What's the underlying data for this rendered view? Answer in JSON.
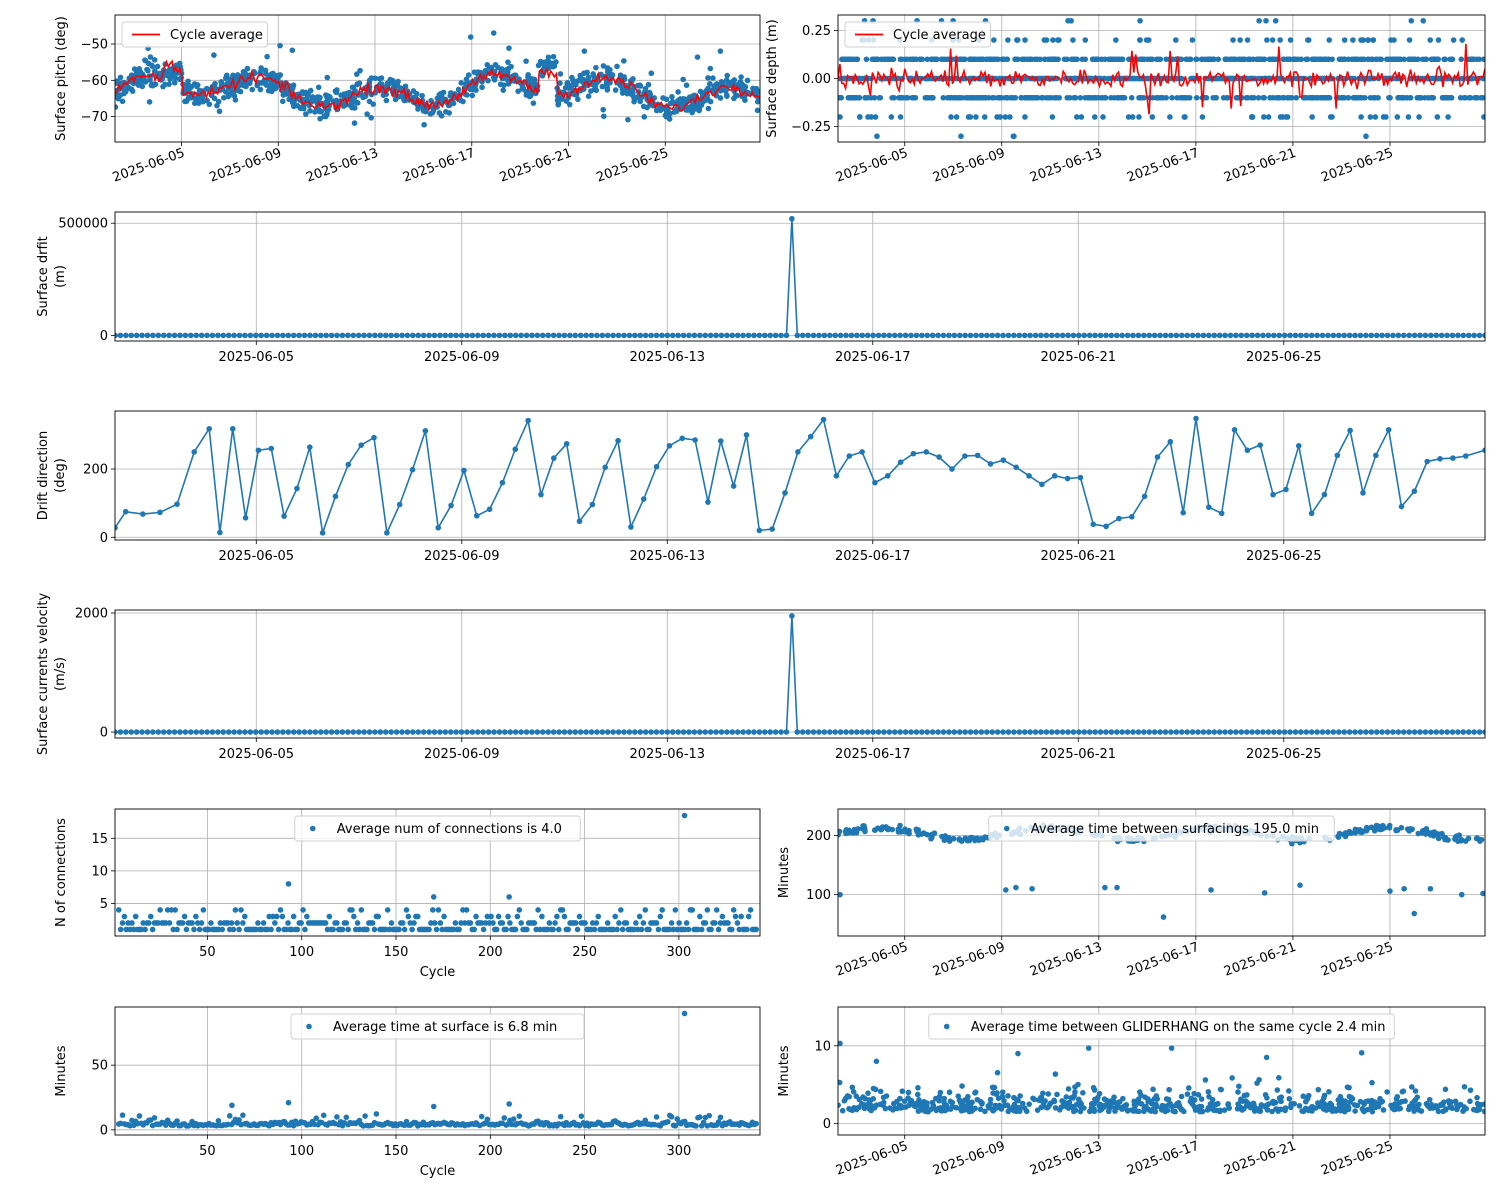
{
  "figure": {
    "background": "#ffffff"
  },
  "colors": {
    "points": "#1f77b4",
    "average": "#ff0000",
    "grid": "#b0b0b0"
  },
  "chart_data": [
    {
      "id": "pitch",
      "type": "scatter",
      "ylabel": "Surface pitch (deg)",
      "x_axis": "date",
      "xlim": [
        "2025-06-02T06:00",
        "2025-06-28T22:00"
      ],
      "ylim": [
        -77,
        -42
      ],
      "xticks": [
        "2025-06-05",
        "2025-06-09",
        "2025-06-13",
        "2025-06-17",
        "2025-06-21",
        "2025-06-25"
      ],
      "yticks": [
        -70,
        -60,
        -50
      ],
      "grid": true,
      "rotate_xticks": true,
      "legend": {
        "placement": "upper left",
        "entries": [
          "Cycle average"
        ]
      },
      "generated": {
        "kind": "pitch",
        "count": 1100,
        "start": "2025-06-02T06:00",
        "end": "2025-06-28T22:00"
      },
      "average_line": {
        "name": "Cycle average",
        "kind": "pitch",
        "count": 340,
        "start": "2025-06-02T06:00",
        "end": "2025-06-28T22:00"
      }
    },
    {
      "id": "depth",
      "type": "scatter",
      "ylabel": "Surface depth (m)",
      "x_axis": "date",
      "xlim": [
        "2025-06-02T06:00",
        "2025-06-28T22:00"
      ],
      "ylim": [
        -0.33,
        0.33
      ],
      "xticks": [
        "2025-06-05",
        "2025-06-09",
        "2025-06-13",
        "2025-06-17",
        "2025-06-21",
        "2025-06-25"
      ],
      "yticks": [
        -0.25,
        0.0,
        0.25
      ],
      "ytick_labels": [
        "−0.25",
        "0.00",
        "0.25"
      ],
      "grid": true,
      "rotate_xticks": true,
      "legend": {
        "placement": "upper left",
        "entries": [
          "Cycle average"
        ]
      },
      "generated": {
        "kind": "depth",
        "count": 1300,
        "start": "2025-06-02T06:00",
        "end": "2025-06-28T22:00"
      },
      "average_line": {
        "name": "Cycle average",
        "kind": "depthavg",
        "count": 340,
        "start": "2025-06-02T06:00",
        "end": "2025-06-28T22:00"
      }
    },
    {
      "id": "drift",
      "type": "line",
      "ylabel": [
        "Surface drfit",
        "(m)"
      ],
      "x_axis": "date",
      "xlim": [
        "2025-06-02T06:00",
        "2025-06-28T22:00"
      ],
      "ylim": [
        -25000,
        550000
      ],
      "xticks": [
        "2025-06-05",
        "2025-06-09",
        "2025-06-13",
        "2025-06-17",
        "2025-06-21",
        "2025-06-25"
      ],
      "yticks": [
        0,
        500000
      ],
      "grid": true,
      "markers": true,
      "generated": {
        "kind": "zerospike",
        "count": 254,
        "start": "2025-06-02T06:00",
        "end": "2025-06-28T22:00",
        "spike_time": "2025-06-15T09:00",
        "spike_value": 520000
      }
    },
    {
      "id": "direction",
      "type": "line",
      "ylabel": [
        "Drift direction",
        "(deg)"
      ],
      "x_axis": "date",
      "xlim": [
        "2025-06-02T06:00",
        "2025-06-28T22:00"
      ],
      "ylim": [
        -8,
        370
      ],
      "xticks": [
        "2025-06-05",
        "2025-06-09",
        "2025-06-13",
        "2025-06-17",
        "2025-06-21",
        "2025-06-25"
      ],
      "yticks": [
        0,
        200
      ],
      "grid": true,
      "markers": true,
      "points": [
        [
          "2025-06-02T06:00",
          28
        ],
        [
          "2025-06-02T11:00",
          75
        ],
        [
          "2025-06-02T19:00",
          68
        ],
        [
          "2025-06-03T03:00",
          73
        ],
        [
          "2025-06-03T11:00",
          97
        ],
        [
          "2025-06-03T19:00",
          250
        ],
        [
          "2025-06-04T02:00",
          318
        ],
        [
          "2025-06-04T07:00",
          14
        ],
        [
          "2025-06-04T13:00",
          318
        ],
        [
          "2025-06-04T19:00",
          57
        ],
        [
          "2025-06-05T01:00",
          255
        ],
        [
          "2025-06-05T07:00",
          260
        ],
        [
          "2025-06-05T13:00",
          62
        ],
        [
          "2025-06-05T19:00",
          143
        ],
        [
          "2025-06-06T01:00",
          264
        ],
        [
          "2025-06-06T07:00",
          13
        ],
        [
          "2025-06-06T13:00",
          120
        ],
        [
          "2025-06-06T19:00",
          213
        ],
        [
          "2025-06-07T01:00",
          270
        ],
        [
          "2025-06-07T07:00",
          292
        ],
        [
          "2025-06-07T13:00",
          13
        ],
        [
          "2025-06-07T19:00",
          96
        ],
        [
          "2025-06-08T01:00",
          198
        ],
        [
          "2025-06-08T07:00",
          312
        ],
        [
          "2025-06-08T13:00",
          28
        ],
        [
          "2025-06-08T19:00",
          93
        ],
        [
          "2025-06-09T01:00",
          196
        ],
        [
          "2025-06-09T07:00",
          63
        ],
        [
          "2025-06-09T13:00",
          82
        ],
        [
          "2025-06-09T19:00",
          160
        ],
        [
          "2025-06-10T01:00",
          258
        ],
        [
          "2025-06-10T07:00",
          342
        ],
        [
          "2025-06-10T13:00",
          125
        ],
        [
          "2025-06-10T19:00",
          232
        ],
        [
          "2025-06-11T01:00",
          274
        ],
        [
          "2025-06-11T07:00",
          47
        ],
        [
          "2025-06-11T13:00",
          96
        ],
        [
          "2025-06-11T19:00",
          205
        ],
        [
          "2025-06-12T01:00",
          283
        ],
        [
          "2025-06-12T07:00",
          30
        ],
        [
          "2025-06-12T13:00",
          112
        ],
        [
          "2025-06-12T19:00",
          207
        ],
        [
          "2025-06-13T01:00",
          268
        ],
        [
          "2025-06-13T07:00",
          290
        ],
        [
          "2025-06-13T13:00",
          285
        ],
        [
          "2025-06-13T19:00",
          103
        ],
        [
          "2025-06-14T01:00",
          282
        ],
        [
          "2025-06-14T07:00",
          150
        ],
        [
          "2025-06-14T13:00",
          300
        ],
        [
          "2025-06-14T19:00",
          20
        ],
        [
          "2025-06-15T01:00",
          24
        ],
        [
          "2025-06-15T07:00",
          130
        ],
        [
          "2025-06-15T13:00",
          250
        ],
        [
          "2025-06-15T19:00",
          295
        ],
        [
          "2025-06-16T01:00",
          345
        ],
        [
          "2025-06-16T07:00",
          180
        ],
        [
          "2025-06-16T13:00",
          238
        ],
        [
          "2025-06-16T19:00",
          250
        ],
        [
          "2025-06-17T01:00",
          160
        ],
        [
          "2025-06-17T07:00",
          180
        ],
        [
          "2025-06-17T13:00",
          220
        ],
        [
          "2025-06-17T19:00",
          245
        ],
        [
          "2025-06-18T01:00",
          250
        ],
        [
          "2025-06-18T07:00",
          235
        ],
        [
          "2025-06-18T13:00",
          200
        ],
        [
          "2025-06-18T19:00",
          238
        ],
        [
          "2025-06-19T01:00",
          240
        ],
        [
          "2025-06-19T07:00",
          215
        ],
        [
          "2025-06-19T13:00",
          226
        ],
        [
          "2025-06-19T19:00",
          205
        ],
        [
          "2025-06-20T01:00",
          180
        ],
        [
          "2025-06-20T07:00",
          155
        ],
        [
          "2025-06-20T13:00",
          180
        ],
        [
          "2025-06-20T19:00",
          172
        ],
        [
          "2025-06-21T01:00",
          175
        ],
        [
          "2025-06-21T07:00",
          38
        ],
        [
          "2025-06-21T13:00",
          32
        ],
        [
          "2025-06-21T19:00",
          55
        ],
        [
          "2025-06-22T01:00",
          60
        ],
        [
          "2025-06-22T07:00",
          120
        ],
        [
          "2025-06-22T13:00",
          235
        ],
        [
          "2025-06-22T19:00",
          280
        ],
        [
          "2025-06-23T01:00",
          72
        ],
        [
          "2025-06-23T07:00",
          348
        ],
        [
          "2025-06-23T13:00",
          88
        ],
        [
          "2025-06-23T19:00",
          70
        ],
        [
          "2025-06-24T01:00",
          315
        ],
        [
          "2025-06-24T07:00",
          255
        ],
        [
          "2025-06-24T13:00",
          270
        ],
        [
          "2025-06-24T19:00",
          125
        ],
        [
          "2025-06-25T01:00",
          140
        ],
        [
          "2025-06-25T07:00",
          268
        ],
        [
          "2025-06-25T13:00",
          70
        ],
        [
          "2025-06-25T19:00",
          125
        ],
        [
          "2025-06-26T01:00",
          240
        ],
        [
          "2025-06-26T07:00",
          313
        ],
        [
          "2025-06-26T13:00",
          130
        ],
        [
          "2025-06-26T19:00",
          240
        ],
        [
          "2025-06-27T01:00",
          315
        ],
        [
          "2025-06-27T07:00",
          90
        ],
        [
          "2025-06-27T13:00",
          135
        ],
        [
          "2025-06-27T19:00",
          222
        ],
        [
          "2025-06-28T01:00",
          230
        ],
        [
          "2025-06-28T07:00",
          232
        ],
        [
          "2025-06-28T13:00",
          238
        ],
        [
          "2025-06-28T22:00",
          255
        ]
      ]
    },
    {
      "id": "velocity",
      "type": "line",
      "ylabel": [
        "Surface currents velocity",
        "(m/s)"
      ],
      "x_axis": "date",
      "xlim": [
        "2025-06-02T06:00",
        "2025-06-28T22:00"
      ],
      "ylim": [
        -100,
        2050
      ],
      "xticks": [
        "2025-06-05",
        "2025-06-09",
        "2025-06-13",
        "2025-06-17",
        "2025-06-21",
        "2025-06-25"
      ],
      "yticks": [
        0,
        2000
      ],
      "grid": true,
      "markers": true,
      "generated": {
        "kind": "zerospike",
        "count": 254,
        "start": "2025-06-02T06:00",
        "end": "2025-06-28T22:00",
        "spike_time": "2025-06-15T09:00",
        "spike_value": 1950
      }
    },
    {
      "id": "connections",
      "type": "scatter",
      "xlabel": "Cycle",
      "ylabel": "N of connections",
      "x_axis": "number",
      "xlim": [
        1,
        343
      ],
      "ylim": [
        0,
        19.5
      ],
      "xticks": [
        50,
        100,
        150,
        200,
        250,
        300
      ],
      "yticks": [
        5,
        10,
        15
      ],
      "grid": true,
      "legend": {
        "placement": "upper center",
        "entries": [
          "Average num of connections is 4.0"
        ]
      },
      "generated": {
        "kind": "connections",
        "count": 340,
        "start": 3,
        "end": 341
      },
      "outliers": [
        [
          303,
          18.5
        ],
        [
          93,
          8
        ],
        [
          170,
          6
        ],
        [
          210,
          6
        ]
      ]
    },
    {
      "id": "interval",
      "type": "scatter",
      "ylabel": "Minutes",
      "x_axis": "date",
      "xlim": [
        "2025-06-02T06:00",
        "2025-06-28T22:00"
      ],
      "ylim": [
        30,
        245
      ],
      "xticks": [
        "2025-06-05",
        "2025-06-09",
        "2025-06-13",
        "2025-06-17",
        "2025-06-21",
        "2025-06-25"
      ],
      "yticks": [
        100,
        200
      ],
      "grid": true,
      "rotate_xticks": true,
      "legend": {
        "placement": "upper center",
        "entries": [
          "Average time between surfacings 195.0 min"
        ]
      },
      "generated": {
        "kind": "interval",
        "count": 320,
        "start": "2025-06-02T06:00",
        "end": "2025-06-28T22:00"
      },
      "outliers": [
        [
          "2025-06-02T08:00",
          100
        ],
        [
          "2025-06-09T04:00",
          108
        ],
        [
          "2025-06-09T14:00",
          112
        ],
        [
          "2025-06-10T06:00",
          110
        ],
        [
          "2025-06-13T06:00",
          112
        ],
        [
          "2025-06-13T18:00",
          112
        ],
        [
          "2025-06-15T16:00",
          62
        ],
        [
          "2025-06-17T15:00",
          108
        ],
        [
          "2025-06-19T20:00",
          103
        ],
        [
          "2025-06-21T07:00",
          116
        ],
        [
          "2025-06-25T00:00",
          106
        ],
        [
          "2025-06-25T14:00",
          110
        ],
        [
          "2025-06-26T00:00",
          68
        ],
        [
          "2025-06-26T16:00",
          110
        ],
        [
          "2025-06-27T23:00",
          100
        ],
        [
          "2025-06-28T20:00",
          102
        ]
      ]
    },
    {
      "id": "surface_time",
      "type": "scatter",
      "xlabel": "Cycle",
      "ylabel": "Minutes",
      "x_axis": "number",
      "xlim": [
        1,
        343
      ],
      "ylim": [
        -4,
        95
      ],
      "xticks": [
        50,
        100,
        150,
        200,
        250,
        300
      ],
      "yticks": [
        0,
        50
      ],
      "grid": true,
      "legend": {
        "placement": "upper center",
        "entries": [
          "Average time at surface is 6.8 min"
        ]
      },
      "generated": {
        "kind": "surface",
        "count": 340,
        "start": 3,
        "end": 341
      },
      "outliers": [
        [
          303,
          90
        ],
        [
          93,
          21
        ],
        [
          63,
          19
        ],
        [
          170,
          18
        ],
        [
          210,
          20
        ]
      ]
    },
    {
      "id": "gliderhang",
      "type": "scatter",
      "ylabel": "Minutes",
      "x_axis": "date",
      "xlim": [
        "2025-06-02T06:00",
        "2025-06-28T22:00"
      ],
      "ylim": [
        -1.5,
        15
      ],
      "xticks": [
        "2025-06-05",
        "2025-06-09",
        "2025-06-13",
        "2025-06-17",
        "2025-06-21",
        "2025-06-25"
      ],
      "yticks": [
        0,
        10
      ],
      "grid": true,
      "rotate_xticks": true,
      "legend": {
        "placement": "upper center",
        "entries": [
          "Average time between GLIDERHANG on the same cycle 2.4 min"
        ]
      },
      "generated": {
        "kind": "hang",
        "count": 650,
        "start": "2025-06-02T06:00",
        "end": "2025-06-28T22:00"
      },
      "outliers": [
        [
          "2025-06-02T08:00",
          10.3
        ],
        [
          "2025-06-03T20:00",
          8
        ],
        [
          "2025-06-09T16:00",
          9
        ],
        [
          "2025-06-12T14:00",
          9.7
        ],
        [
          "2025-06-16T00:00",
          9.7
        ],
        [
          "2025-06-19T22:00",
          8.5
        ],
        [
          "2025-06-23T20:00",
          9.1
        ]
      ]
    }
  ]
}
